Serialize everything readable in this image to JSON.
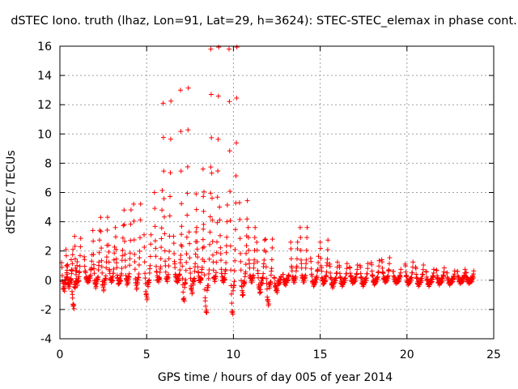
{
  "chart_data": {
    "type": "scatter",
    "title": "dSTEC Iono. truth (lhaz, Lon=91, Lat=29, h=3624): STEC-STEC_elemax in phase cont.",
    "xlabel": "GPS time / hours of day 005 of year 2014",
    "ylabel": "dSTEC  / TECUs",
    "xlim": [
      0,
      25
    ],
    "ylim": [
      -4,
      16
    ],
    "x_ticks": [
      0,
      5,
      10,
      15,
      20,
      25
    ],
    "y_ticks": [
      -4,
      -2,
      0,
      2,
      4,
      6,
      8,
      10,
      12,
      14,
      16
    ],
    "grid": true,
    "marker": "+",
    "color": "#ff0000",
    "passes": [
      {
        "x": 0.1,
        "dur": 0.35,
        "peak": 1.2,
        "low": -0.6
      },
      {
        "x": 0.35,
        "dur": 0.4,
        "peak": 2.1,
        "low": -0.4
      },
      {
        "x": 0.65,
        "dur": 0.35,
        "peak": 1.4,
        "low": -1.8
      },
      {
        "x": 0.85,
        "dur": 0.35,
        "peak": 3.0,
        "low": -0.2
      },
      {
        "x": 1.4,
        "dur": 0.45,
        "peak": 1.6,
        "low": 0.0
      },
      {
        "x": 1.9,
        "dur": 0.4,
        "peak": 3.4,
        "low": -0.4
      },
      {
        "x": 2.35,
        "dur": 0.4,
        "peak": 4.3,
        "low": -0.6
      },
      {
        "x": 2.8,
        "dur": 0.35,
        "peak": 2.4,
        "low": 0.0
      },
      {
        "x": 3.2,
        "dur": 0.45,
        "peak": 3.6,
        "low": -0.2
      },
      {
        "x": 3.7,
        "dur": 0.4,
        "peak": 4.8,
        "low": -0.2
      },
      {
        "x": 4.25,
        "dur": 0.4,
        "peak": 5.2,
        "low": -0.5
      },
      {
        "x": 4.85,
        "dur": 0.4,
        "peak": 3.1,
        "low": -1.2
      },
      {
        "x": 5.45,
        "dur": 0.45,
        "peak": 6.0,
        "low": 0.1
      },
      {
        "x": 5.95,
        "dur": 0.45,
        "peak": 12.1,
        "low": 0.2
      },
      {
        "x": 6.55,
        "dur": 0.45,
        "peak": 3.0,
        "low": 0.0
      },
      {
        "x": 6.95,
        "dur": 0.45,
        "peak": 13.0,
        "low": -1.4
      },
      {
        "x": 7.45,
        "dur": 0.4,
        "peak": 3.3,
        "low": -0.8
      },
      {
        "x": 7.85,
        "dur": 0.45,
        "peak": 5.9,
        "low": 0.0
      },
      {
        "x": 8.25,
        "dur": 0.45,
        "peak": 7.6,
        "low": -2.2
      },
      {
        "x": 8.7,
        "dur": 0.45,
        "peak": 15.8,
        "low": 0.2
      },
      {
        "x": 9.2,
        "dur": 0.45,
        "peak": 5.0,
        "low": 0.0
      },
      {
        "x": 9.75,
        "dur": 0.45,
        "peak": 15.8,
        "low": -2.3
      },
      {
        "x": 10.35,
        "dur": 0.45,
        "peak": 5.3,
        "low": -1.0
      },
      {
        "x": 10.85,
        "dur": 0.4,
        "peak": 3.6,
        "low": 0.0
      },
      {
        "x": 11.35,
        "dur": 0.45,
        "peak": 2.6,
        "low": -0.8
      },
      {
        "x": 11.85,
        "dur": 0.4,
        "peak": 2.8,
        "low": -1.6
      },
      {
        "x": 12.35,
        "dur": 0.4,
        "peak": 0.2,
        "low": -0.7
      },
      {
        "x": 12.85,
        "dur": 0.35,
        "peak": 0.4,
        "low": -0.2
      },
      {
        "x": 13.3,
        "dur": 0.4,
        "peak": 2.6,
        "low": 0.0
      },
      {
        "x": 13.85,
        "dur": 0.4,
        "peak": 3.6,
        "low": 0.0
      },
      {
        "x": 14.45,
        "dur": 0.45,
        "peak": 1.5,
        "low": -0.3
      },
      {
        "x": 15.0,
        "dur": 0.45,
        "peak": 2.6,
        "low": -0.2
      },
      {
        "x": 15.55,
        "dur": 0.45,
        "peak": 1.1,
        "low": -0.4
      },
      {
        "x": 16.1,
        "dur": 0.45,
        "peak": 1.0,
        "low": -0.3
      },
      {
        "x": 16.7,
        "dur": 0.45,
        "peak": 0.9,
        "low": -0.1
      },
      {
        "x": 17.3,
        "dur": 0.45,
        "peak": 1.0,
        "low": -0.3
      },
      {
        "x": 17.95,
        "dur": 0.45,
        "peak": 1.2,
        "low": -0.2
      },
      {
        "x": 18.55,
        "dur": 0.45,
        "peak": 1.4,
        "low": 0.0
      },
      {
        "x": 19.2,
        "dur": 0.45,
        "peak": 0.6,
        "low": -0.1
      },
      {
        "x": 19.9,
        "dur": 0.45,
        "peak": 1.1,
        "low": -0.2
      },
      {
        "x": 20.5,
        "dur": 0.45,
        "peak": 0.9,
        "low": -0.3
      },
      {
        "x": 21.1,
        "dur": 0.45,
        "peak": 0.6,
        "low": -0.3
      },
      {
        "x": 21.7,
        "dur": 0.45,
        "peak": 0.7,
        "low": -0.2
      },
      {
        "x": 22.3,
        "dur": 0.45,
        "peak": 0.5,
        "low": -0.2
      },
      {
        "x": 22.9,
        "dur": 0.45,
        "peak": 0.6,
        "low": -0.1
      },
      {
        "x": 23.4,
        "dur": 0.45,
        "peak": 0.5,
        "low": -0.1
      }
    ]
  }
}
